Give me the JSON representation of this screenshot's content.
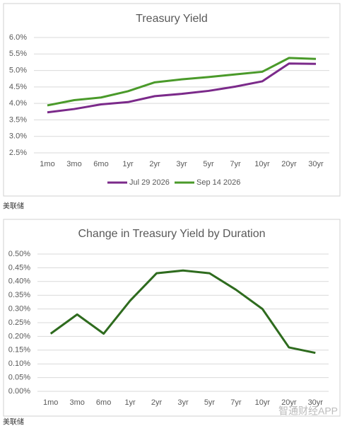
{
  "chart_data": [
    {
      "type": "line",
      "title": "Treasury Yield",
      "categories": [
        "1mo",
        "3mo",
        "6mo",
        "1yr",
        "2yr",
        "3yr",
        "5yr",
        "7yr",
        "10yr",
        "20yr",
        "30yr"
      ],
      "series": [
        {
          "name": "Jul 29 2026",
          "color": "#7b2a8a",
          "values": [
            3.73,
            3.83,
            3.97,
            4.04,
            4.22,
            4.29,
            4.38,
            4.51,
            4.67,
            5.21,
            5.2
          ]
        },
        {
          "name": "Sep 14 2026",
          "color": "#4a9a2a",
          "values": [
            3.94,
            4.1,
            4.18,
            4.37,
            4.64,
            4.73,
            4.8,
            4.88,
            4.96,
            5.38,
            5.35
          ]
        }
      ],
      "ylim": [
        2.5,
        6.0
      ],
      "yticks": [
        {
          "value": 2.5,
          "label": "2.5%"
        },
        {
          "value": 3.0,
          "label": "3.0%"
        },
        {
          "value": 3.5,
          "label": "3.5%"
        },
        {
          "value": 4.0,
          "label": "4.0%"
        },
        {
          "value": 4.5,
          "label": "4.5%"
        },
        {
          "value": 5.0,
          "label": "5.0%"
        },
        {
          "value": 5.5,
          "label": "5.5%"
        },
        {
          "value": 6.0,
          "label": "6.0%"
        }
      ],
      "grid": true,
      "legend": "bottom"
    },
    {
      "type": "line",
      "title": "Change in Treasury Yield by Duration",
      "categories": [
        "1mo",
        "3mo",
        "6mo",
        "1yr",
        "2yr",
        "3yr",
        "5yr",
        "7yr",
        "10yr",
        "20yr",
        "30yr"
      ],
      "values": [
        0.21,
        0.28,
        0.21,
        0.33,
        0.43,
        0.44,
        0.43,
        0.37,
        0.3,
        0.16,
        0.14
      ],
      "color": "#2e6b1e",
      "ylim": [
        0,
        0.5
      ],
      "yticks": [
        {
          "value": 0,
          "label": "0.00%"
        },
        {
          "value": 0.05,
          "label": "0.05%"
        },
        {
          "value": 0.1,
          "label": "0.10%"
        },
        {
          "value": 0.15,
          "label": "0.15%"
        },
        {
          "value": 0.2,
          "label": "0.20%"
        },
        {
          "value": 0.25,
          "label": "0.25%"
        },
        {
          "value": 0.3,
          "label": "0.30%"
        },
        {
          "value": 0.35,
          "label": "0.35%"
        },
        {
          "value": 0.4,
          "label": "0.40%"
        },
        {
          "value": 0.45,
          "label": "0.45%"
        },
        {
          "value": 0.5,
          "label": "0.50%"
        }
      ],
      "grid": true
    }
  ],
  "captions": [
    "美联储",
    "美联储"
  ],
  "watermark": "智通财经APP"
}
